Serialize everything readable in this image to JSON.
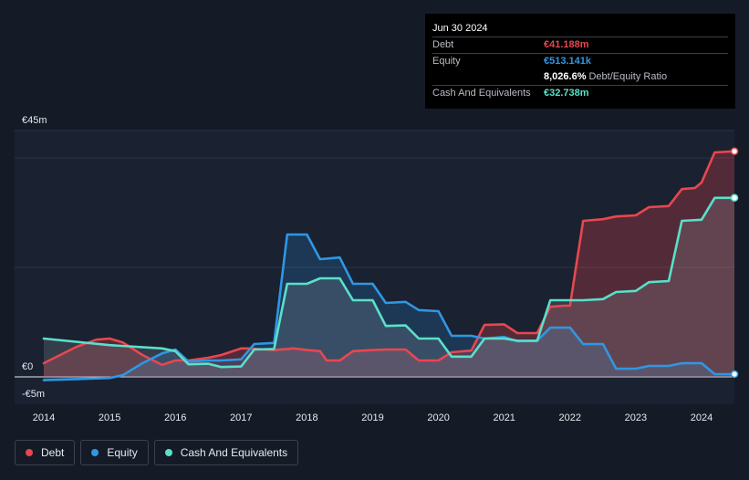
{
  "tooltip": {
    "date": "Jun 30 2024",
    "rows": [
      {
        "label": "Debt",
        "value": "€41.188m",
        "color": "#e8474f"
      },
      {
        "label": "Equity",
        "value": "€513.141k",
        "color": "#2f97e4"
      },
      {
        "label": "",
        "value": "8,026.6%",
        "suffix": "Debt/Equity Ratio",
        "color": "#ffffff"
      },
      {
        "label": "Cash And Equivalents",
        "value": "€32.738m",
        "color": "#5ae0c9"
      }
    ]
  },
  "legend": [
    {
      "label": "Debt",
      "color": "#e8474f"
    },
    {
      "label": "Equity",
      "color": "#2f97e4"
    },
    {
      "label": "Cash And Equivalents",
      "color": "#5ae0c9"
    }
  ],
  "chart_data": {
    "type": "area",
    "ylim": [
      -5,
      45
    ],
    "xlim": [
      2014,
      2024.5
    ],
    "y_ticks": [
      {
        "value": 45,
        "label": "€45m"
      },
      {
        "value": 0,
        "label": "€0"
      },
      {
        "value": -5,
        "label": "-€5m"
      }
    ],
    "x_ticks": [
      {
        "value": 2014,
        "label": "2014"
      },
      {
        "value": 2015,
        "label": "2015"
      },
      {
        "value": 2016,
        "label": "2016"
      },
      {
        "value": 2017,
        "label": "2017"
      },
      {
        "value": 2018,
        "label": "2018"
      },
      {
        "value": 2019,
        "label": "2019"
      },
      {
        "value": 2020,
        "label": "2020"
      },
      {
        "value": 2021,
        "label": "2021"
      },
      {
        "value": 2022,
        "label": "2022"
      },
      {
        "value": 2023,
        "label": "2023"
      },
      {
        "value": 2024,
        "label": "2024"
      }
    ],
    "series": [
      {
        "name": "Debt",
        "color": "#e8474f",
        "points": [
          [
            2014.0,
            2.5
          ],
          [
            2014.5,
            5.5
          ],
          [
            2014.8,
            6.8
          ],
          [
            2015.0,
            7.0
          ],
          [
            2015.2,
            6.3
          ],
          [
            2015.5,
            4.0
          ],
          [
            2015.8,
            2.2
          ],
          [
            2016.0,
            3.0
          ],
          [
            2016.2,
            3.0
          ],
          [
            2016.5,
            3.5
          ],
          [
            2016.7,
            4.0
          ],
          [
            2017.0,
            5.2
          ],
          [
            2017.1,
            5.2
          ],
          [
            2017.5,
            4.9
          ],
          [
            2017.8,
            5.2
          ],
          [
            2018.0,
            4.9
          ],
          [
            2018.2,
            4.7
          ],
          [
            2018.3,
            3.0
          ],
          [
            2018.5,
            3.0
          ],
          [
            2018.7,
            4.7
          ],
          [
            2019.0,
            4.9
          ],
          [
            2019.2,
            5.0
          ],
          [
            2019.5,
            5.0
          ],
          [
            2019.7,
            3.0
          ],
          [
            2020.0,
            3.0
          ],
          [
            2020.2,
            4.5
          ],
          [
            2020.5,
            4.8
          ],
          [
            2020.7,
            9.5
          ],
          [
            2021.0,
            9.6
          ],
          [
            2021.2,
            8.0
          ],
          [
            2021.5,
            8.0
          ],
          [
            2021.7,
            12.8
          ],
          [
            2021.9,
            13.0
          ],
          [
            2022.0,
            13.0
          ],
          [
            2022.2,
            28.5
          ],
          [
            2022.5,
            28.8
          ],
          [
            2022.7,
            29.3
          ],
          [
            2023.0,
            29.5
          ],
          [
            2023.2,
            31.0
          ],
          [
            2023.5,
            31.2
          ],
          [
            2023.7,
            34.3
          ],
          [
            2023.9,
            34.5
          ],
          [
            2024.0,
            35.5
          ],
          [
            2024.2,
            41.0
          ],
          [
            2024.5,
            41.2
          ]
        ]
      },
      {
        "name": "Equity",
        "color": "#2f97e4",
        "points": [
          [
            2014.0,
            -0.6
          ],
          [
            2014.5,
            -0.4
          ],
          [
            2015.0,
            -0.2
          ],
          [
            2015.2,
            0.3
          ],
          [
            2015.5,
            2.5
          ],
          [
            2015.8,
            4.3
          ],
          [
            2016.0,
            5.0
          ],
          [
            2016.2,
            2.8
          ],
          [
            2016.5,
            3.0
          ],
          [
            2016.7,
            3.0
          ],
          [
            2017.0,
            3.2
          ],
          [
            2017.2,
            6.0
          ],
          [
            2017.5,
            6.2
          ],
          [
            2017.7,
            26.0
          ],
          [
            2018.0,
            26.0
          ],
          [
            2018.2,
            21.5
          ],
          [
            2018.5,
            21.8
          ],
          [
            2018.7,
            17.0
          ],
          [
            2019.0,
            17.0
          ],
          [
            2019.2,
            13.5
          ],
          [
            2019.5,
            13.7
          ],
          [
            2019.7,
            12.2
          ],
          [
            2020.0,
            12.0
          ],
          [
            2020.2,
            7.5
          ],
          [
            2020.5,
            7.5
          ],
          [
            2020.7,
            7.0
          ],
          [
            2021.0,
            7.3
          ],
          [
            2021.2,
            6.5
          ],
          [
            2021.5,
            6.6
          ],
          [
            2021.7,
            9.0
          ],
          [
            2022.0,
            9.0
          ],
          [
            2022.2,
            6.0
          ],
          [
            2022.5,
            6.0
          ],
          [
            2022.7,
            1.5
          ],
          [
            2023.0,
            1.5
          ],
          [
            2023.2,
            2.0
          ],
          [
            2023.5,
            2.0
          ],
          [
            2023.7,
            2.5
          ],
          [
            2024.0,
            2.5
          ],
          [
            2024.2,
            0.5
          ],
          [
            2024.5,
            0.5
          ]
        ]
      },
      {
        "name": "Cash And Equivalents",
        "color": "#5ae0c9",
        "points": [
          [
            2014.0,
            7.0
          ],
          [
            2015.0,
            5.8
          ],
          [
            2015.8,
            5.2
          ],
          [
            2016.0,
            4.7
          ],
          [
            2016.2,
            2.3
          ],
          [
            2016.5,
            2.4
          ],
          [
            2016.7,
            1.8
          ],
          [
            2017.0,
            1.9
          ],
          [
            2017.2,
            5.0
          ],
          [
            2017.5,
            5.1
          ],
          [
            2017.7,
            17.0
          ],
          [
            2018.0,
            17.0
          ],
          [
            2018.2,
            18.0
          ],
          [
            2018.5,
            18.0
          ],
          [
            2018.7,
            14.0
          ],
          [
            2019.0,
            14.0
          ],
          [
            2019.2,
            9.3
          ],
          [
            2019.5,
            9.4
          ],
          [
            2019.7,
            7.0
          ],
          [
            2020.0,
            7.0
          ],
          [
            2020.2,
            3.7
          ],
          [
            2020.5,
            3.7
          ],
          [
            2020.7,
            7.0
          ],
          [
            2021.0,
            7.0
          ],
          [
            2021.2,
            6.6
          ],
          [
            2021.5,
            6.6
          ],
          [
            2021.7,
            14.0
          ],
          [
            2022.0,
            14.0
          ],
          [
            2022.2,
            14.0
          ],
          [
            2022.5,
            14.2
          ],
          [
            2022.7,
            15.5
          ],
          [
            2023.0,
            15.7
          ],
          [
            2023.2,
            17.3
          ],
          [
            2023.5,
            17.5
          ],
          [
            2023.7,
            28.5
          ],
          [
            2024.0,
            28.7
          ],
          [
            2024.2,
            32.7
          ],
          [
            2024.5,
            32.7
          ]
        ]
      }
    ]
  }
}
